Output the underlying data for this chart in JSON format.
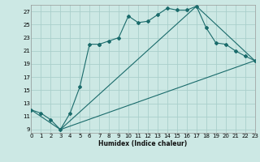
{
  "xlabel": "Humidex (Indice chaleur)",
  "bg_color": "#cce8e4",
  "grid_color": "#aacfcb",
  "line_color": "#1a6b6b",
  "xlim": [
    0,
    23
  ],
  "ylim": [
    8.5,
    28.0
  ],
  "yticks": [
    9,
    11,
    13,
    15,
    17,
    19,
    21,
    23,
    25,
    27
  ],
  "xticks": [
    0,
    1,
    2,
    3,
    4,
    5,
    6,
    7,
    8,
    9,
    10,
    11,
    12,
    13,
    14,
    15,
    16,
    17,
    18,
    19,
    20,
    21,
    22,
    23
  ],
  "curves": [
    {
      "x": [
        0,
        1,
        2,
        3,
        4,
        5,
        6,
        7,
        7,
        8,
        9,
        10,
        11,
        12,
        13,
        14,
        15,
        16,
        17,
        18,
        19,
        20,
        21,
        22,
        23
      ],
      "y": [
        12.0,
        11.5,
        10.5,
        9.0,
        11.5,
        15.5,
        22.0,
        22.0,
        22.0,
        22.5,
        23.0,
        26.3,
        25.3,
        25.5,
        26.5,
        27.5,
        27.2,
        27.2,
        27.8,
        24.5,
        22.2,
        22.0,
        21.0,
        20.2,
        19.5
      ],
      "marker": true
    },
    {
      "x": [
        0,
        3,
        23
      ],
      "y": [
        12.0,
        9.0,
        19.5
      ],
      "marker": false
    },
    {
      "x": [
        3,
        17,
        23
      ],
      "y": [
        9.0,
        27.8,
        19.5
      ],
      "marker": false
    }
  ]
}
